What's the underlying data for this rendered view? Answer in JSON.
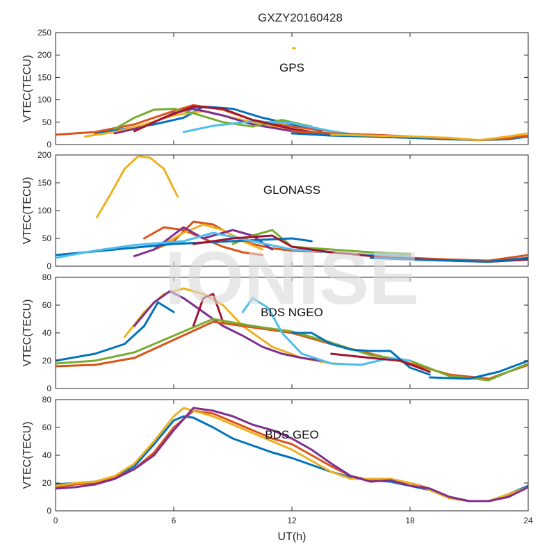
{
  "chart_data": {
    "type": "line",
    "title": "GXZY20160428",
    "xlabel": "UT(h)",
    "xlim": [
      0,
      24
    ],
    "xticks": [
      "0",
      "6",
      "12",
      "18",
      "24"
    ],
    "watermark": "IONISE",
    "colors": [
      "#0072BD",
      "#D95319",
      "#EDB120",
      "#7E2F8E",
      "#77AC30",
      "#4DBEEE",
      "#A2142F"
    ],
    "panels": [
      {
        "label": "GPS",
        "ylabel": "VTEC(TECU)",
        "ylim": [
          0,
          250
        ],
        "yticks": [
          "0",
          "50",
          "100",
          "150",
          "200",
          "250"
        ],
        "series": [
          {
            "color": "#0072BD",
            "x": [
              2,
              3.5,
              5,
              6.5,
              7.5,
              9,
              10.5,
              12,
              13.5
            ],
            "y": [
              25,
              35,
              45,
              60,
              85,
              80,
              60,
              45,
              30
            ]
          },
          {
            "color": "#D95319",
            "x": [
              0,
              2,
              4,
              6,
              7,
              8.5,
              10,
              12,
              14
            ],
            "y": [
              22,
              28,
              45,
              75,
              88,
              78,
              55,
              40,
              30
            ]
          },
          {
            "color": "#EDB120",
            "x": [
              1.5,
              3,
              4.5,
              6,
              7.5,
              9,
              10.5,
              12
            ],
            "y": [
              18,
              28,
              45,
              65,
              75,
              60,
              45,
              35
            ]
          },
          {
            "color": "#7E2F8E",
            "x": [
              3,
              4.5,
              6,
              7,
              8.5,
              10,
              12,
              14
            ],
            "y": [
              25,
              40,
              70,
              80,
              65,
              45,
              30,
              22
            ]
          },
          {
            "color": "#77AC30",
            "x": [
              3,
              4,
              5,
              6,
              7,
              8.5,
              10,
              11.5,
              13
            ],
            "y": [
              35,
              60,
              78,
              80,
              70,
              50,
              40,
              55,
              40
            ]
          },
          {
            "color": "#4DBEEE",
            "x": [
              6.5,
              8,
              10,
              12,
              14,
              15.5
            ],
            "y": [
              28,
              42,
              52,
              48,
              30,
              20
            ]
          },
          {
            "color": "#A2142F",
            "x": [
              4,
              5.5,
              7,
              8.5,
              10,
              12,
              14,
              16,
              18,
              20,
              21.5
            ],
            "y": [
              30,
              60,
              85,
              80,
              55,
              35,
              22,
              18,
              15,
              12,
              10
            ]
          },
          {
            "color": "#0072BD",
            "x": [
              12,
              14,
              16,
              18,
              20,
              21.5,
              23,
              24
            ],
            "y": [
              25,
              20,
              18,
              15,
              12,
              10,
              12,
              18
            ]
          },
          {
            "color": "#D95319",
            "x": [
              12,
              14,
              16,
              18,
              20,
              21.5,
              23,
              24
            ],
            "y": [
              30,
              25,
              22,
              18,
              14,
              10,
              14,
              20
            ]
          },
          {
            "color": "#EDB120",
            "x": [
              14,
              16,
              18,
              20,
              21.5,
              23,
              24
            ],
            "y": [
              22,
              20,
              18,
              15,
              10,
              18,
              25
            ]
          },
          {
            "color": "#EDB120",
            "x": [
              12.05,
              12.15
            ],
            "y": [
              215,
              215
            ]
          }
        ]
      },
      {
        "label": "GLONASS",
        "ylabel": "VTEC(TECU)",
        "ylim": [
          0,
          200
        ],
        "yticks": [
          "0",
          "50",
          "100",
          "150",
          "200"
        ],
        "series": [
          {
            "color": "#EDB120",
            "x": [
              2.1,
              2.8,
              3.5,
              4.2,
              4.8,
              5.5,
              6.2
            ],
            "y": [
              88,
              130,
              175,
              198,
              195,
              175,
              125
            ]
          },
          {
            "color": "#D95319",
            "x": [
              4.5,
              5.5,
              6.5,
              7.5,
              8.5,
              9.5,
              10.5
            ],
            "y": [
              50,
              70,
              65,
              50,
              35,
              25,
              20
            ]
          },
          {
            "color": "#D95319",
            "x": [
              5,
              6,
              7,
              8,
              9,
              10,
              11,
              12,
              14,
              16,
              18,
              20,
              22,
              24
            ],
            "y": [
              30,
              45,
              80,
              75,
              55,
              40,
              32,
              28,
              25,
              20,
              15,
              12,
              10,
              20
            ]
          },
          {
            "color": "#EDB120",
            "x": [
              5.5,
              6.5,
              7.5,
              8.5,
              9.5,
              10.5
            ],
            "y": [
              40,
              60,
              75,
              65,
              45,
              30
            ]
          },
          {
            "color": "#7E2F8E",
            "x": [
              4,
              5,
              6.5,
              7.5,
              9,
              10,
              11
            ],
            "y": [
              18,
              30,
              70,
              50,
              65,
              55,
              30
            ]
          },
          {
            "color": "#77AC30",
            "x": [
              9,
              10,
              11,
              12,
              14,
              16,
              18
            ],
            "y": [
              40,
              55,
              65,
              35,
              30,
              25,
              22
            ]
          },
          {
            "color": "#0072BD",
            "x": [
              0,
              3,
              6,
              9,
              12,
              13
            ],
            "y": [
              20,
              30,
              40,
              45,
              50,
              45
            ]
          },
          {
            "color": "#4DBEEE",
            "x": [
              0,
              2,
              4,
              6.5,
              8,
              10,
              12,
              15,
              18
            ],
            "y": [
              15,
              28,
              38,
              45,
              60,
              45,
              30,
              22,
              18
            ]
          },
          {
            "color": "#A2142F",
            "x": [
              7,
              9,
              11,
              12,
              14,
              17,
              20,
              22,
              24
            ],
            "y": [
              40,
              50,
              55,
              35,
              25,
              15,
              10,
              8,
              12
            ]
          },
          {
            "color": "#0072BD",
            "x": [
              16,
              18,
              20,
              22,
              24
            ],
            "y": [
              15,
              12,
              10,
              8,
              15
            ]
          }
        ]
      },
      {
        "label": "BDS NGEO",
        "ylabel": "VTEC(TECU)",
        "ylim": [
          0,
          80
        ],
        "yticks": [
          "0",
          "20",
          "40",
          "60",
          "80"
        ],
        "series": [
          {
            "color": "#EDB120",
            "x": [
              3.5,
              4.5,
              5.5,
              6.5,
              7.5,
              8.5,
              9.5,
              11,
              12.5,
              14,
              15.5
            ],
            "y": [
              37,
              55,
              68,
              72,
              68,
              60,
              45,
              30,
              22,
              18,
              17
            ]
          },
          {
            "color": "#7E2F8E",
            "x": [
              4,
              5,
              5.8,
              6.5,
              7.5,
              8.5,
              9.5,
              10.5,
              11.5,
              12.5,
              13.5
            ],
            "y": [
              45,
              62,
              70,
              65,
              55,
              45,
              38,
              30,
              25,
              22,
              20
            ]
          },
          {
            "color": "#0072BD",
            "x": [
              0,
              2,
              3.5,
              4.5,
              5.2,
              6
            ],
            "y": [
              20,
              25,
              32,
              45,
              62,
              55
            ]
          },
          {
            "color": "#A2142F",
            "x": [
              7,
              7.5,
              8,
              8.5
            ],
            "y": [
              45,
              65,
              68,
              48
            ]
          },
          {
            "color": "#D95319",
            "x": [
              0,
              2,
              4,
              6,
              8,
              10,
              12,
              14,
              16,
              18,
              20,
              22,
              24
            ],
            "y": [
              16,
              17,
              22,
              35,
              48,
              44,
              40,
              32,
              25,
              18,
              10,
              7,
              17
            ]
          },
          {
            "color": "#77AC30",
            "x": [
              0,
              2,
              4,
              6,
              8,
              10,
              12,
              14,
              16,
              18,
              20,
              22,
              24
            ],
            "y": [
              18,
              20,
              26,
              38,
              50,
              45,
              41,
              33,
              24,
              20,
              9,
              6,
              18
            ]
          },
          {
            "color": "#4DBEEE",
            "x": [
              9.5,
              10,
              10.8,
              11.5,
              12.5,
              14,
              15.5,
              17,
              18
            ],
            "y": [
              55,
              65,
              58,
              40,
              25,
              18,
              17,
              22,
              20
            ]
          },
          {
            "color": "#0072BD",
            "x": [
              12,
              13,
              14,
              15,
              16,
              17,
              18,
              19
            ],
            "y": [
              40,
              40,
              32,
              28,
              27,
              27,
              15,
              10
            ]
          },
          {
            "color": "#0072BD",
            "x": [
              19,
              21,
              22.5,
              24
            ],
            "y": [
              8,
              7,
              12,
              20
            ]
          },
          {
            "color": "#A2142F",
            "x": [
              14,
              16,
              17.5,
              19
            ],
            "y": [
              25,
              22,
              20,
              12
            ]
          }
        ]
      },
      {
        "label": "BDS GEO",
        "ylabel": "VTEC(TECU)",
        "ylim": [
          0,
          80
        ],
        "yticks": [
          "0",
          "20",
          "40",
          "60",
          "80"
        ],
        "series": [
          {
            "color": "#0072BD",
            "x": [
              0,
              1,
              2,
              3,
              4,
              5,
              6,
              6.5,
              7,
              8,
              9,
              10,
              11,
              12,
              13,
              14,
              15,
              16,
              17,
              18,
              19,
              20,
              21,
              22,
              23,
              24
            ],
            "y": [
              19,
              20,
              21,
              24,
              32,
              48,
              65,
              68,
              67,
              60,
              52,
              47,
              42,
              38,
              33,
              28,
              24,
              22,
              21,
              18,
              15,
              10,
              7,
              7,
              12,
              18
            ]
          },
          {
            "color": "#D95319",
            "x": [
              0,
              1,
              2,
              3,
              4,
              5,
              6,
              7,
              8,
              9,
              10,
              11,
              12,
              13,
              14,
              15,
              16,
              17,
              18,
              19,
              20,
              21,
              22,
              23,
              24
            ],
            "y": [
              17,
              19,
              20,
              24,
              30,
              42,
              60,
              72,
              70,
              64,
              58,
              52,
              48,
              40,
              32,
              25,
              22,
              22,
              20,
              16,
              10,
              7,
              7,
              11,
              17
            ]
          },
          {
            "color": "#EDB120",
            "x": [
              0,
              1,
              2,
              3,
              4,
              5,
              6,
              6.5,
              7,
              8,
              9,
              10,
              11,
              12,
              13,
              14,
              15,
              16,
              17,
              18,
              19,
              20,
              21,
              22,
              23,
              24
            ],
            "y": [
              18,
              20,
              21,
              25,
              34,
              50,
              68,
              74,
              72,
              68,
              62,
              56,
              50,
              44,
              36,
              28,
              23,
              23,
              23,
              20,
              15,
              9,
              7,
              7,
              12,
              17
            ]
          },
          {
            "color": "#7E2F8E",
            "x": [
              0,
              1,
              2,
              3,
              4,
              5,
              6,
              7,
              8,
              9,
              10,
              11,
              12,
              13,
              14,
              15,
              16,
              17,
              18,
              19,
              20,
              21,
              22,
              23,
              24
            ],
            "y": [
              16,
              17,
              19,
              23,
              30,
              40,
              58,
              74,
              72,
              68,
              62,
              58,
              52,
              44,
              34,
              25,
              21,
              22,
              18,
              16,
              10,
              7,
              7,
              10,
              17
            ]
          }
        ]
      }
    ]
  }
}
